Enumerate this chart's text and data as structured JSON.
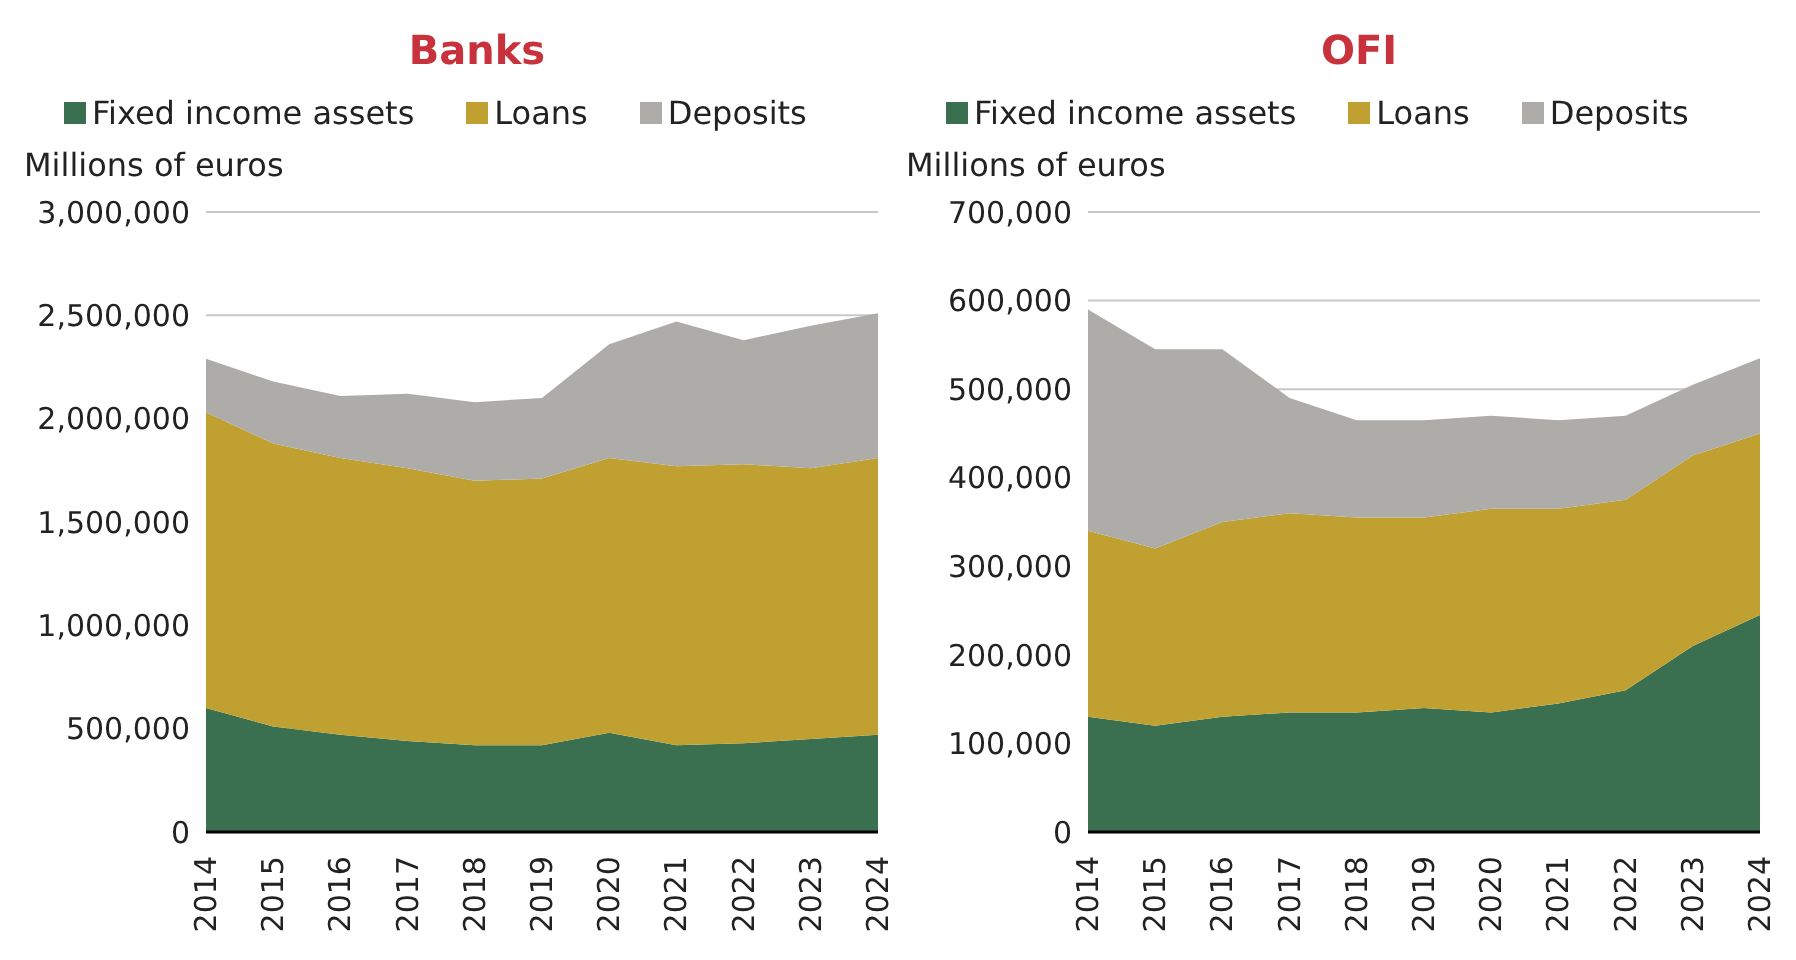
{
  "chart_data": [
    {
      "type": "area",
      "title": "Banks",
      "ylabel": "Millions of euros",
      "stacked": true,
      "legend": "top",
      "grid": "y",
      "categories": [
        "2014",
        "2015",
        "2016",
        "2017",
        "2018",
        "2019",
        "2020",
        "2021",
        "2022",
        "2023",
        "2024"
      ],
      "ylim": [
        0,
        3000000
      ],
      "yticks": [
        {
          "value": 0,
          "label": "0"
        },
        {
          "value": 500000,
          "label": "500,000"
        },
        {
          "value": 1000000,
          "label": "1,000,000"
        },
        {
          "value": 1500000,
          "label": "1,500,000"
        },
        {
          "value": 2000000,
          "label": "2,000,000"
        },
        {
          "value": 2500000,
          "label": "2,500,000"
        },
        {
          "value": 3000000,
          "label": "3,000,000"
        }
      ],
      "series": [
        {
          "name": "Fixed income assets",
          "color": "#3a7050",
          "values": [
            600000,
            510000,
            470000,
            440000,
            420000,
            420000,
            480000,
            420000,
            430000,
            450000,
            470000
          ]
        },
        {
          "name": "Loans",
          "color": "#bfa030",
          "values": [
            1430000,
            1370000,
            1340000,
            1320000,
            1280000,
            1290000,
            1330000,
            1350000,
            1350000,
            1310000,
            1340000
          ]
        },
        {
          "name": "Deposits",
          "color": "#adaca8",
          "values": [
            260000,
            300000,
            300000,
            360000,
            380000,
            390000,
            550000,
            700000,
            600000,
            690000,
            700000
          ]
        }
      ]
    },
    {
      "type": "area",
      "title": "OFI",
      "ylabel": "Millions of euros",
      "stacked": true,
      "legend": "top",
      "grid": "y",
      "categories": [
        "2014",
        "2015",
        "2016",
        "2017",
        "2018",
        "2019",
        "2020",
        "2021",
        "2022",
        "2023",
        "2024"
      ],
      "ylim": [
        0,
        700000
      ],
      "yticks": [
        {
          "value": 0,
          "label": "0"
        },
        {
          "value": 100000,
          "label": "100,000"
        },
        {
          "value": 200000,
          "label": "200,000"
        },
        {
          "value": 300000,
          "label": "300,000"
        },
        {
          "value": 400000,
          "label": "400,000"
        },
        {
          "value": 500000,
          "label": "500,000"
        },
        {
          "value": 600000,
          "label": "600,000"
        },
        {
          "value": 700000,
          "label": "700,000"
        }
      ],
      "series": [
        {
          "name": "Fixed income assets",
          "color": "#3a7050",
          "values": [
            130000,
            120000,
            130000,
            135000,
            135000,
            140000,
            135000,
            145000,
            160000,
            210000,
            245000
          ]
        },
        {
          "name": "Loans",
          "color": "#bfa030",
          "values": [
            210000,
            200000,
            220000,
            225000,
            220000,
            215000,
            230000,
            220000,
            215000,
            215000,
            205000
          ]
        },
        {
          "name": "Deposits",
          "color": "#adaca8",
          "values": [
            250000,
            225000,
            195000,
            130000,
            110000,
            110000,
            105000,
            100000,
            95000,
            80000,
            85000
          ]
        }
      ]
    }
  ]
}
